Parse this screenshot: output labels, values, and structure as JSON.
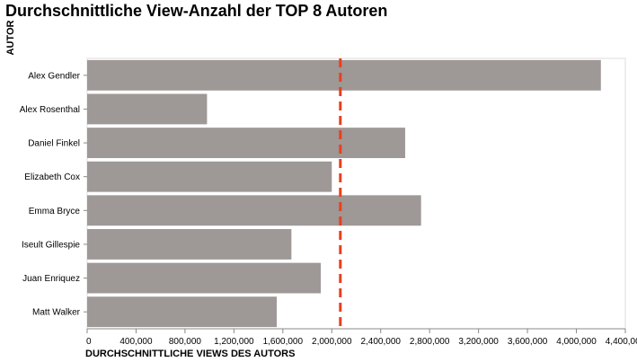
{
  "chart_data": {
    "type": "bar",
    "orientation": "horizontal",
    "title": "Durchschnittliche View-Anzahl der TOP 8 Autoren",
    "xlabel": "DURCHSCHNITTLICHE VIEWS DES AUTORS",
    "ylabel": "AUTOR",
    "categories": [
      "Alex Gendler",
      "Alex Rosenthal",
      "Daniel Finkel",
      "Elizabeth Cox",
      "Emma Bryce",
      "Iseult Gillespie",
      "Juan Enriquez",
      "Matt Walker"
    ],
    "values": [
      4200000,
      980000,
      2600000,
      2000000,
      2730000,
      1670000,
      1910000,
      1550000
    ],
    "xlim": [
      0,
      4400000
    ],
    "xticks": [
      0,
      400000,
      800000,
      1200000,
      1600000,
      2000000,
      2400000,
      2800000,
      3200000,
      3600000,
      4000000,
      4400000
    ],
    "xtick_labels": [
      "0",
      "400,000",
      "800,000",
      "1,200,000",
      "1,600,000",
      "2,000,000",
      "2,400,000",
      "2,800,000",
      "3,200,000",
      "3,600,000",
      "4,000,000",
      "4,400,000"
    ],
    "reference_line": {
      "value": 2070000,
      "style": "dashed",
      "color": "#e8401c"
    },
    "bar_color": "#9e9896",
    "grid": false,
    "legend": "none"
  }
}
